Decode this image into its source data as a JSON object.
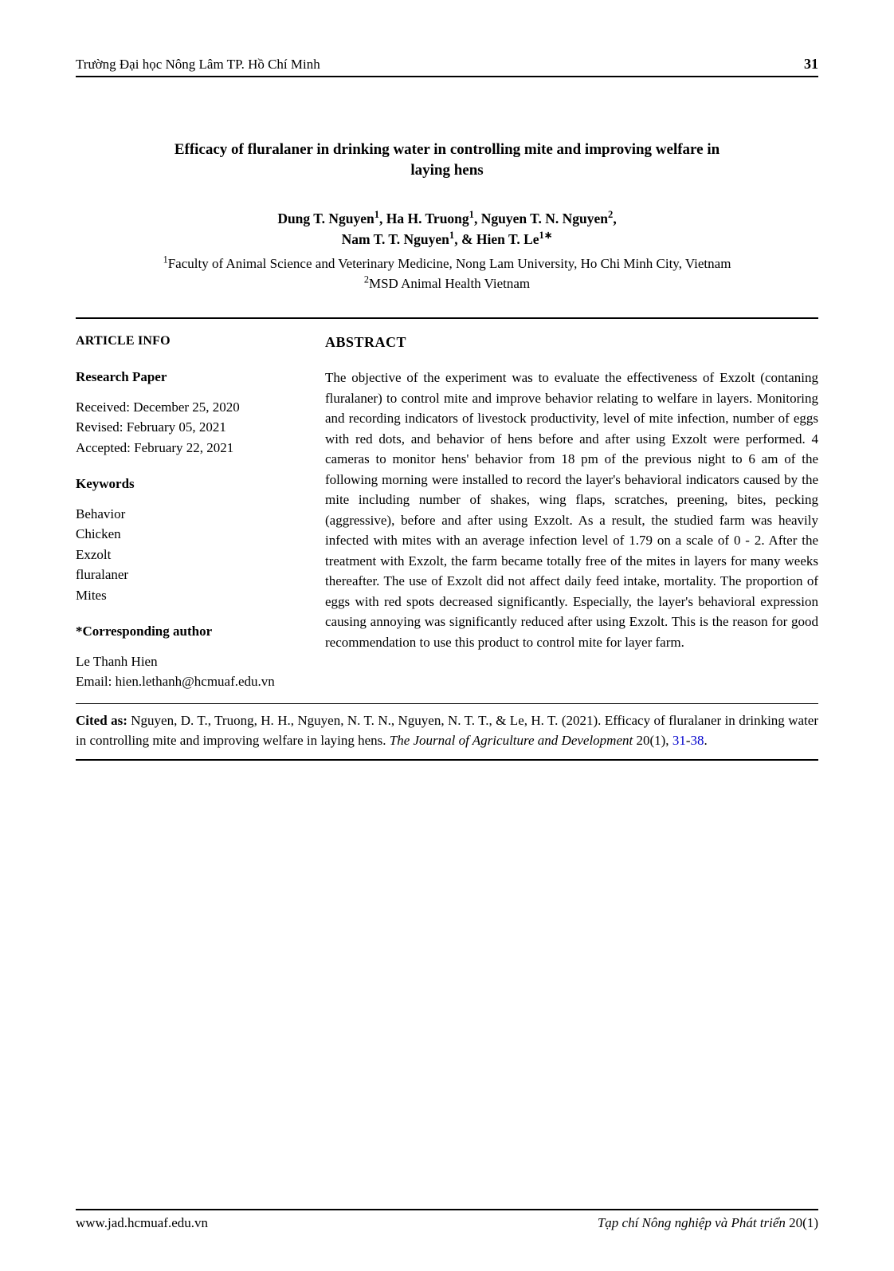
{
  "header": {
    "left": "Trường Đại học Nông Lâm TP. Hồ Chí Minh",
    "page_number": "31"
  },
  "title": {
    "line1": "Efficacy of fluralaner in drinking water in controlling mite and improving welfare in",
    "line2": "laying hens"
  },
  "authors": {
    "line1_parts": [
      {
        "text": "Dung T. Nguyen",
        "sup": "1"
      },
      {
        "text": ", Ha H. Truong",
        "sup": "1"
      },
      {
        "text": ", Nguyen T. N. Nguyen",
        "sup": "2"
      },
      {
        "text": ",",
        "sup": ""
      }
    ],
    "line2_parts": [
      {
        "text": "Nam T. T. Nguyen",
        "sup": "1"
      },
      {
        "text": ", & Hien T. Le",
        "sup": "1∗"
      }
    ]
  },
  "affiliations": {
    "a1": {
      "sup": "1",
      "text": "Faculty of Animal Science and Veterinary Medicine, Nong Lam University, Ho Chi Minh City, Vietnam"
    },
    "a2": {
      "sup": "2",
      "text": "MSD Animal Health Vietnam"
    }
  },
  "article_info": {
    "heading": "ARTICLE INFO",
    "type_label": "Research Paper",
    "received": "Received: December 25, 2020",
    "revised": "Revised: February 05, 2021",
    "accepted": "Accepted: February 22, 2021",
    "keywords_label": "Keywords",
    "keywords": [
      "Behavior",
      "Chicken",
      "Exzolt",
      "fluralaner",
      "Mites"
    ],
    "corresponding_label": "*Corresponding author",
    "corresponding_name": "Le Thanh Hien",
    "corresponding_email": "Email: hien.lethanh@hcmuaf.edu.vn"
  },
  "abstract": {
    "heading": "ABSTRACT",
    "body": "The objective of the experiment was to evaluate the effectiveness of Exzolt (contaning fluralaner) to control mite and improve behavior relating to welfare in layers. Monitoring and recording indicators of livestock productivity, level of mite infection, number of eggs with red dots, and behavior of hens before and after using Exzolt were performed. 4 cameras to monitor hens' behavior from 18 pm of the previous night to 6 am of the following morning were installed to record the layer's behavioral indicators caused by the mite including number of shakes, wing flaps, scratches, preening, bites, pecking (aggressive), before and after using Exzolt. As a result, the studied farm was heavily infected with mites with an average infection level of 1.79 on a scale of 0 - 2. After the treatment with Exzolt, the farm became totally free of the mites in layers for many weeks thereafter. The use of Exzolt did not affect daily feed intake, mortality. The proportion of eggs with red spots decreased significantly. Especially, the layer's behavioral expression causing annoying was significantly reduced after using Exzolt. This is the reason for good recommendation to use this product to control mite for layer farm."
  },
  "citation": {
    "label": "Cited as:",
    "text_before_journal": " Nguyen, D. T., Truong, H. H., Nguyen, N. T. N., Nguyen, N. T. T., & Le, H. T. (2021). Efficacy of fluralaner in drinking water in controlling mite and improving welfare in laying hens. ",
    "journal": "The Journal of Agriculture and Development",
    "vol_issue": " 20(1), ",
    "page_start": "31",
    "dash": "-",
    "page_end": "38",
    "period": "."
  },
  "footer": {
    "left": "www.jad.hcmuaf.edu.vn",
    "right_ital": "Tạp chí Nông nghiệp và Phát triển ",
    "right_plain": "20(1)"
  },
  "colors": {
    "text": "#000000",
    "background": "#ffffff",
    "link": "#0000cc",
    "rule": "#000000"
  },
  "typography": {
    "base_font": "Times New Roman",
    "base_size_pt": 12,
    "title_size_pt": 14,
    "heading_size_pt": 13
  }
}
